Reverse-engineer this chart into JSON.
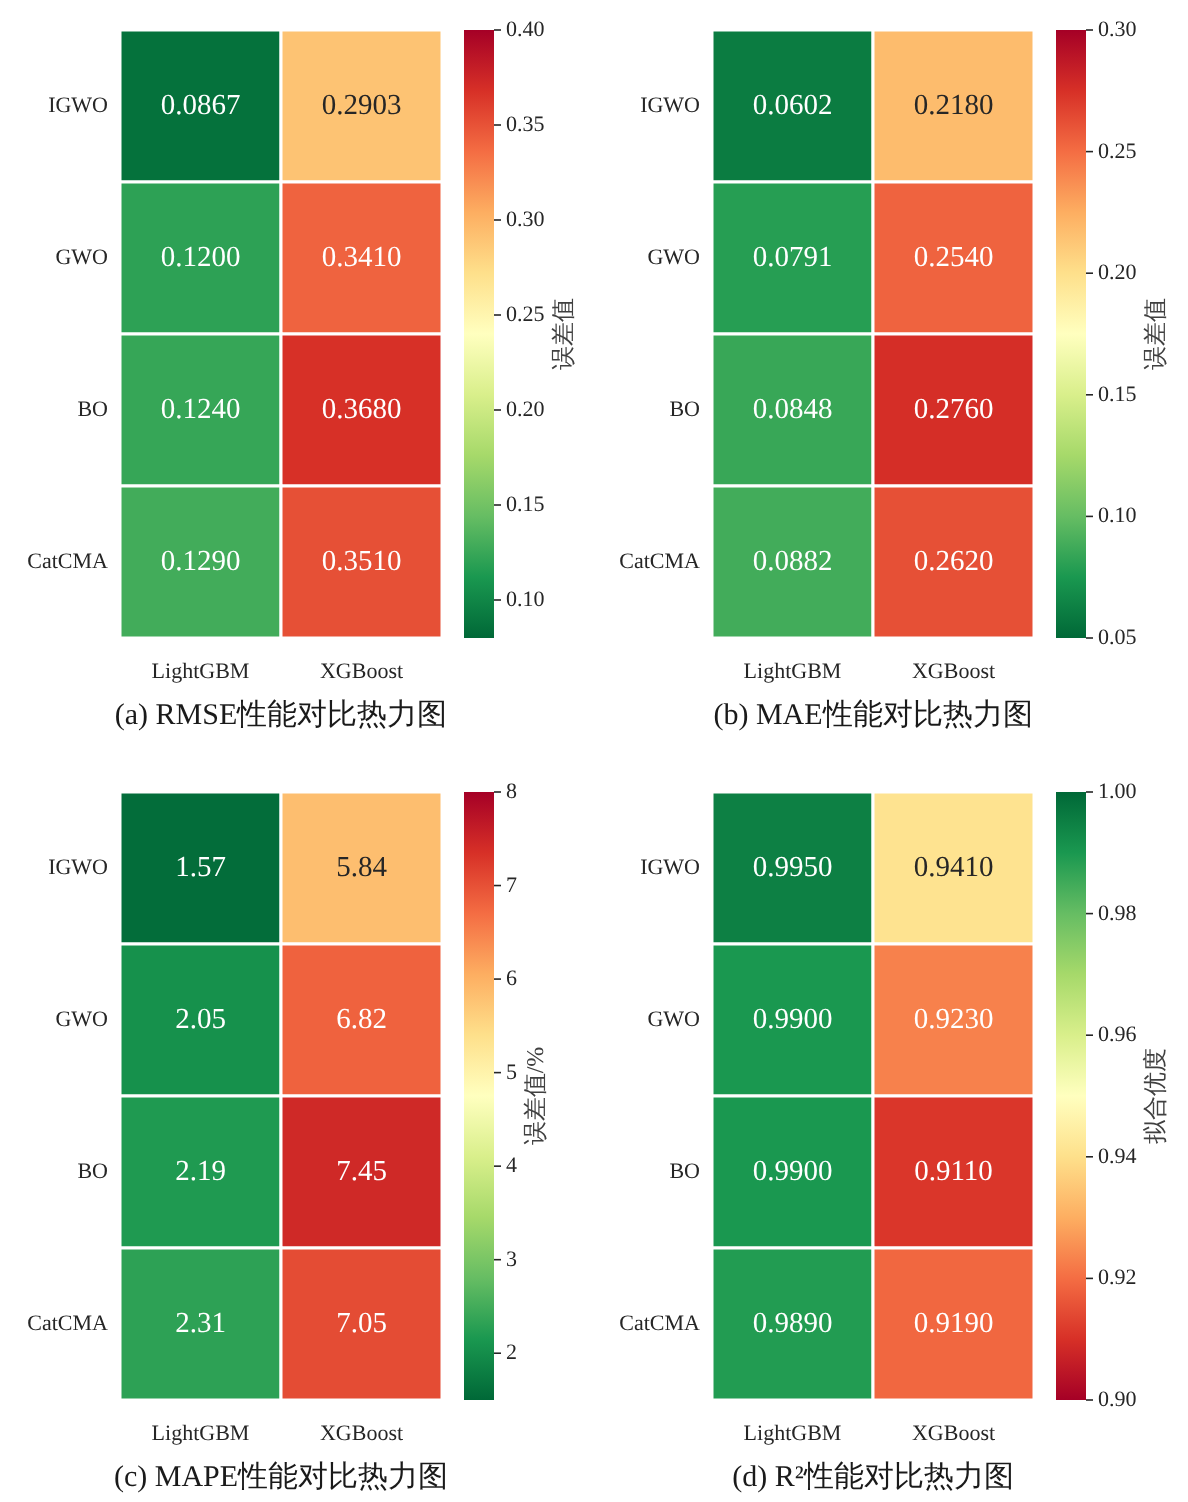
{
  "chart_data": [
    {
      "type": "heatmap",
      "title": "(a) RMSE性能对比热力图",
      "clabel": "误差值",
      "categories": [
        "LightGBM",
        "XGBoost"
      ],
      "y_categories": [
        "IGWO",
        "GWO",
        "BO",
        "CatCMA"
      ],
      "cells": [
        [
          0.0867,
          0.2903
        ],
        [
          0.12,
          0.341
        ],
        [
          0.124,
          0.368
        ],
        [
          0.129,
          0.351
        ]
      ],
      "cell_labels": [
        [
          "0.0867",
          "0.2903"
        ],
        [
          "0.1200",
          "0.3410"
        ],
        [
          "0.1240",
          "0.3680"
        ],
        [
          "0.1290",
          "0.3510"
        ]
      ],
      "clim": [
        0.08,
        0.4
      ],
      "cticks": [
        {
          "value": 0.1,
          "label": "0.10"
        },
        {
          "value": 0.15,
          "label": "0.15"
        },
        {
          "value": 0.2,
          "label": "0.20"
        },
        {
          "value": 0.25,
          "label": "0.25"
        },
        {
          "value": 0.3,
          "label": "0.30"
        },
        {
          "value": 0.35,
          "label": "0.35"
        },
        {
          "value": 0.4,
          "label": "0.40"
        }
      ],
      "colors": [
        "#006837",
        "#1a9850",
        "#66bd63",
        "#a6d96a",
        "#d9ef8b",
        "#ffffbf",
        "#fee08b",
        "#fdae61",
        "#f46d43",
        "#d73027",
        "#a50026"
      ]
    },
    {
      "type": "heatmap",
      "title": "(b) MAE性能对比热力图",
      "clabel": "误差值",
      "categories": [
        "LightGBM",
        "XGBoost"
      ],
      "y_categories": [
        "IGWO",
        "GWO",
        "BO",
        "CatCMA"
      ],
      "cells": [
        [
          0.0602,
          0.218
        ],
        [
          0.0791,
          0.254
        ],
        [
          0.0848,
          0.276
        ],
        [
          0.0882,
          0.262
        ]
      ],
      "cell_labels": [
        [
          "0.0602",
          "0.2180"
        ],
        [
          "0.0791",
          "0.2540"
        ],
        [
          "0.0848",
          "0.2760"
        ],
        [
          "0.0882",
          "0.2620"
        ]
      ],
      "clim": [
        0.05,
        0.3
      ],
      "cticks": [
        {
          "value": 0.05,
          "label": "0.05"
        },
        {
          "value": 0.1,
          "label": "0.10"
        },
        {
          "value": 0.15,
          "label": "0.15"
        },
        {
          "value": 0.2,
          "label": "0.20"
        },
        {
          "value": 0.25,
          "label": "0.25"
        },
        {
          "value": 0.3,
          "label": "0.30"
        }
      ],
      "colors": [
        "#006837",
        "#1a9850",
        "#66bd63",
        "#a6d96a",
        "#d9ef8b",
        "#ffffbf",
        "#fee08b",
        "#fdae61",
        "#f46d43",
        "#d73027",
        "#a50026"
      ]
    },
    {
      "type": "heatmap",
      "title": "(c) MAPE性能对比热力图",
      "clabel": "误差值/%",
      "categories": [
        "LightGBM",
        "XGBoost"
      ],
      "y_categories": [
        "IGWO",
        "GWO",
        "BO",
        "CatCMA"
      ],
      "cells": [
        [
          1.57,
          5.84
        ],
        [
          2.05,
          6.82
        ],
        [
          2.19,
          7.45
        ],
        [
          2.31,
          7.05
        ]
      ],
      "cell_labels": [
        [
          "1.57",
          "5.84"
        ],
        [
          "2.05",
          "6.82"
        ],
        [
          "2.19",
          "7.45"
        ],
        [
          "2.31",
          "7.05"
        ]
      ],
      "clim": [
        1.5,
        8
      ],
      "cticks": [
        2,
        3,
        4,
        5,
        6,
        7,
        8
      ],
      "colors": [
        "#006837",
        "#1a9850",
        "#66bd63",
        "#a6d96a",
        "#d9ef8b",
        "#ffffbf",
        "#fee08b",
        "#fdae61",
        "#f46d43",
        "#d73027",
        "#a50026"
      ]
    },
    {
      "type": "heatmap",
      "title": "(d) R²性能对比热力图",
      "clabel": "拟合优度",
      "categories": [
        "LightGBM",
        "XGBoost"
      ],
      "y_categories": [
        "IGWO",
        "GWO",
        "BO",
        "CatCMA"
      ],
      "cells": [
        [
          0.995,
          0.941
        ],
        [
          0.99,
          0.923
        ],
        [
          0.99,
          0.911
        ],
        [
          0.989,
          0.919
        ]
      ],
      "cell_labels": [
        [
          "0.9950",
          "0.9410"
        ],
        [
          "0.9900",
          "0.9230"
        ],
        [
          "0.9900",
          "0.9110"
        ],
        [
          "0.9890",
          "0.9190"
        ]
      ],
      "clim": [
        0.9,
        1.0
      ],
      "cticks": [
        {
          "value": 0.9,
          "label": "0.90"
        },
        {
          "value": 0.92,
          "label": "0.92"
        },
        {
          "value": 0.94,
          "label": "0.94"
        },
        {
          "value": 0.96,
          "label": "0.96"
        },
        {
          "value": 0.98,
          "label": "0.98"
        },
        {
          "value": 1.0,
          "label": "1.00"
        }
      ],
      "colors": [
        "#a50026",
        "#d73027",
        "#f46d43",
        "#fdae61",
        "#fee08b",
        "#ffffbf",
        "#d9ef8b",
        "#a6d96a",
        "#66bd63",
        "#1a9850",
        "#006837"
      ]
    }
  ]
}
